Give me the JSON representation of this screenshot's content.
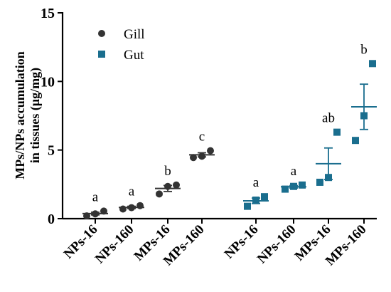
{
  "chart_data": {
    "type": "scatter",
    "ylabel_lines": [
      "MPs/NPs accumulation",
      "in tissues (μg/mg)"
    ],
    "ylim": [
      0,
      15
    ],
    "yticks": [
      0,
      5,
      10,
      15
    ],
    "grid": false,
    "legend_position": "top-left",
    "series": [
      {
        "name": "Gill",
        "marker": "circle",
        "color": "#333333",
        "groups": [
          {
            "category": "NPs-16",
            "points": [
              0.2,
              0.35,
              0.55
            ],
            "mean": 0.37,
            "sem": 0.1,
            "label": "a"
          },
          {
            "category": "NPs-160",
            "points": [
              0.7,
              0.8,
              0.95
            ],
            "mean": 0.82,
            "sem": 0.08,
            "label": "a"
          },
          {
            "category": "MPs-16",
            "points": [
              1.8,
              2.35,
              2.45
            ],
            "mean": 2.2,
            "sem": 0.22,
            "label": "b"
          },
          {
            "category": "MPs-160",
            "points": [
              4.45,
              4.55,
              4.95
            ],
            "mean": 4.65,
            "sem": 0.15,
            "label": "c"
          }
        ]
      },
      {
        "name": "Gut",
        "marker": "square",
        "color": "#1a6e8e",
        "groups": [
          {
            "category": "NPs-16",
            "points": [
              0.9,
              1.35,
              1.6
            ],
            "mean": 1.3,
            "sem": 0.2,
            "label": "a"
          },
          {
            "category": "NPs-160",
            "points": [
              2.15,
              2.35,
              2.45
            ],
            "mean": 2.32,
            "sem": 0.09,
            "label": "a"
          },
          {
            "category": "MPs-16",
            "points": [
              2.65,
              3.0,
              6.3
            ],
            "mean": 4.0,
            "sem": 1.15,
            "label": "ab"
          },
          {
            "category": "MPs-160",
            "points": [
              5.7,
              7.5,
              11.3
            ],
            "mean": 8.15,
            "sem": 1.65,
            "label": "b"
          }
        ]
      }
    ]
  }
}
